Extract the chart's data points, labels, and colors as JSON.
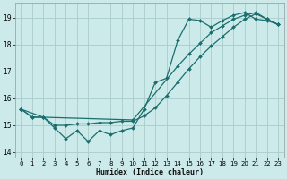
{
  "xlabel": "Humidex (Indice chaleur)",
  "bg_color": "#cceaea",
  "grid_color": "#aacccc",
  "line_color": "#1a6e6e",
  "xlim": [
    -0.5,
    23.5
  ],
  "ylim": [
    13.8,
    19.55
  ],
  "x_ticks": [
    0,
    1,
    2,
    3,
    4,
    5,
    6,
    7,
    8,
    9,
    10,
    11,
    12,
    13,
    14,
    15,
    16,
    17,
    18,
    19,
    20,
    21,
    22,
    23
  ],
  "y_ticks": [
    14,
    15,
    16,
    17,
    18,
    19
  ],
  "line1_x": [
    0,
    1,
    2,
    3,
    4,
    5,
    6,
    7,
    8,
    9,
    10,
    11,
    12,
    13,
    14,
    15,
    16,
    17,
    18,
    19,
    20,
    21,
    22,
    23
  ],
  "line1_y": [
    15.6,
    15.3,
    15.3,
    14.9,
    14.5,
    14.8,
    14.4,
    14.8,
    14.65,
    14.8,
    14.9,
    15.6,
    16.6,
    16.75,
    18.15,
    18.95,
    18.9,
    18.65,
    18.9,
    19.1,
    19.2,
    18.95,
    18.9,
    18.75
  ],
  "line2_x": [
    0,
    2,
    10,
    14,
    15,
    16,
    17,
    18,
    19,
    20,
    21,
    22,
    23
  ],
  "line2_y": [
    15.6,
    15.3,
    15.2,
    17.2,
    17.65,
    18.05,
    18.45,
    18.7,
    18.95,
    19.1,
    19.2,
    18.95,
    18.75
  ],
  "line3_x": [
    0,
    1,
    2,
    3,
    4,
    5,
    6,
    7,
    8,
    9,
    10,
    11,
    12,
    13,
    14,
    15,
    16,
    17,
    18,
    19,
    20,
    21,
    22,
    23
  ],
  "line3_y": [
    15.6,
    15.3,
    15.3,
    15.0,
    15.0,
    15.05,
    15.05,
    15.1,
    15.1,
    15.15,
    15.15,
    15.35,
    15.65,
    16.1,
    16.6,
    17.1,
    17.55,
    17.95,
    18.3,
    18.65,
    18.95,
    19.15,
    18.95,
    18.75
  ]
}
